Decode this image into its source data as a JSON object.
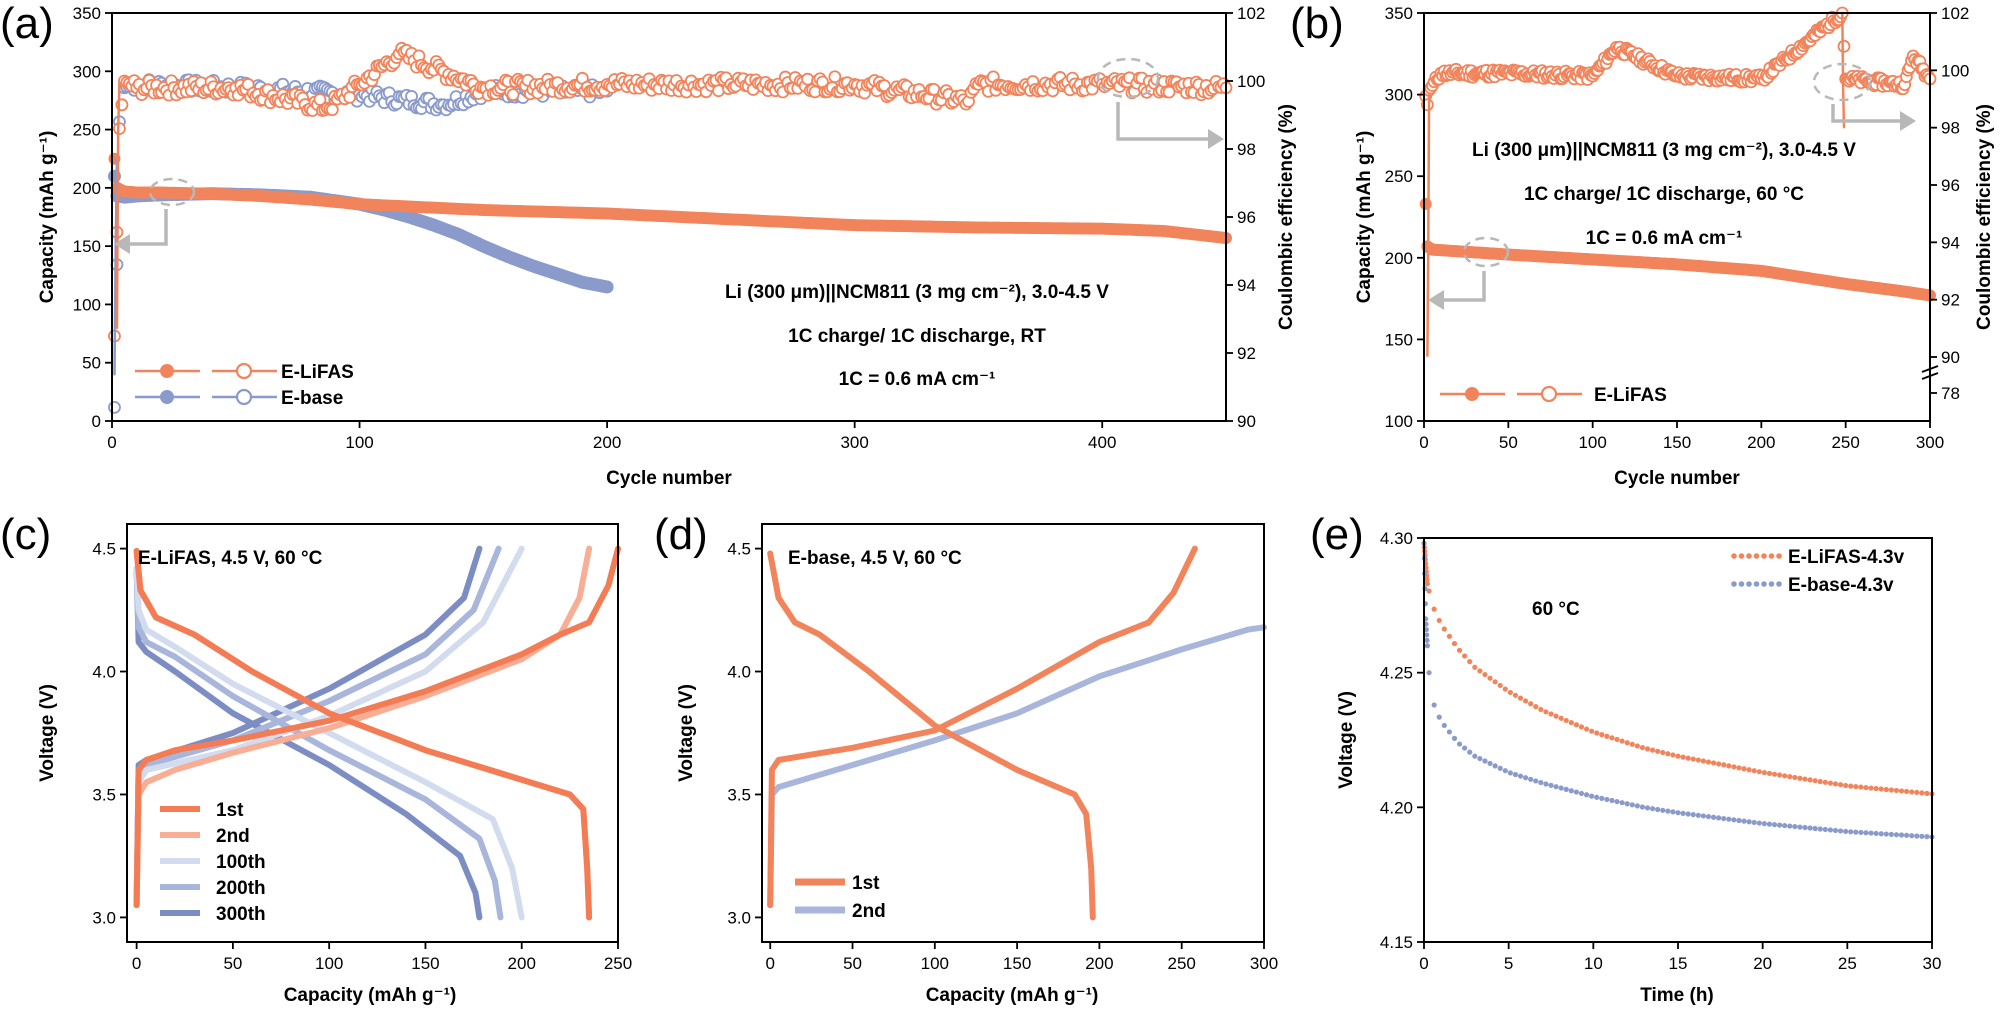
{
  "colors": {
    "lifas": "#F2845C",
    "base": "#8A9BCB",
    "cycle1": "#F47C55",
    "cycle2": "#F8AD95",
    "cycle100": "#D3DBEF",
    "cycle200": "#A9B6DB",
    "cycle300": "#7C8DC4",
    "arrow": "#B8B8B8"
  },
  "chart_data": [
    {
      "panel": "(a)",
      "type": "scatter",
      "xlabel": "Cycle number",
      "ylabel": "Capacity (mAh g⁻¹)",
      "y2label": "Coulombic efficiency (%)",
      "xlim": [
        0,
        450
      ],
      "ylim": [
        0,
        350
      ],
      "y2lim": [
        90,
        102
      ],
      "xticks": [
        0,
        100,
        200,
        300,
        400
      ],
      "yticks": [
        0,
        50,
        100,
        150,
        200,
        250,
        300,
        350
      ],
      "y2ticks": [
        90,
        92,
        94,
        96,
        98,
        100,
        102
      ],
      "annotations": [
        "Li (300 μm)||NCM811 (3 mg cm⁻²), 3.0-4.5 V",
        "1C charge/ 1C discharge, RT",
        "1C = 0.6 mA cm⁻¹"
      ],
      "legend": [
        "E-LiFAS",
        "E-base"
      ],
      "legend_position": "bottom-left",
      "series": [
        {
          "name": "E-LiFAS",
          "axis": "capacity",
          "x": [
            1,
            2,
            5,
            10,
            20,
            40,
            60,
            80,
            100,
            150,
            200,
            250,
            300,
            350,
            400,
            425,
            450
          ],
          "y": [
            225,
            200,
            197,
            196,
            196,
            195,
            193,
            190,
            186,
            181,
            178,
            173,
            168,
            166,
            165,
            163,
            157
          ]
        },
        {
          "name": "E-base",
          "axis": "capacity",
          "x": [
            1,
            2,
            5,
            10,
            20,
            40,
            60,
            70,
            80,
            100,
            110,
            120,
            130,
            140,
            150,
            160,
            170,
            180,
            190,
            200
          ],
          "y": [
            210,
            193,
            192,
            193,
            194,
            195,
            194,
            193,
            192,
            186,
            181,
            175,
            168,
            160,
            150,
            141,
            133,
            126,
            119,
            115
          ]
        },
        {
          "name": "E-LiFAS",
          "axis": "coulombic_efficiency",
          "x": [
            1,
            3,
            5,
            10,
            50,
            87,
            100,
            116,
            150,
            200,
            250,
            300,
            346,
            350,
            400,
            450
          ],
          "y": [
            92.5,
            98.6,
            100.0,
            99.8,
            99.8,
            99.2,
            99.9,
            100.8,
            99.8,
            99.9,
            99.9,
            99.9,
            99.4,
            99.9,
            99.9,
            99.8
          ]
        },
        {
          "name": "E-base",
          "axis": "coulombic_efficiency",
          "x": [
            1,
            3,
            5,
            10,
            50,
            100,
            134,
            150,
            200
          ],
          "y": [
            90.4,
            98.8,
            99.8,
            99.9,
            99.8,
            99.6,
            99.3,
            99.7,
            99.7
          ]
        }
      ]
    },
    {
      "panel": "(b)",
      "type": "scatter",
      "xlabel": "Cycle number",
      "ylabel": "Capacity (mAh g⁻¹)",
      "y2label": "Coulombic efficiency (%)",
      "xlim": [
        0,
        300
      ],
      "ylim": [
        100,
        350
      ],
      "xticks": [
        0,
        50,
        100,
        150,
        200,
        250,
        300
      ],
      "yticks": [
        100,
        150,
        200,
        250,
        300,
        350
      ],
      "y2ticks": [
        78,
        90,
        92,
        94,
        96,
        98,
        100,
        102
      ],
      "y2_break": [
        78,
        90
      ],
      "annotations": [
        "Li (300 μm)||NCM811 (3 mg cm⁻²), 3.0-4.5 V",
        "1C charge/ 1C discharge, 60 °C",
        "1C = 0.6 mA cm⁻¹"
      ],
      "legend": [
        "E-LiFAS"
      ],
      "legend_position": "bottom-left",
      "series": [
        {
          "name": "E-LiFAS",
          "axis": "capacity",
          "x": [
            1,
            2,
            5,
            20,
            50,
            100,
            150,
            200,
            250,
            280,
            300
          ],
          "y": [
            233,
            207,
            205,
            204,
            202,
            199,
            196,
            192,
            184,
            180,
            177
          ]
        },
        {
          "name": "E-LiFAS",
          "axis": "coulombic_efficiency",
          "x": [
            1,
            2,
            3,
            10,
            50,
            100,
            114,
            150,
            200,
            248,
            250,
            285,
            290,
            300
          ],
          "y": [
            99.1,
            98.8,
            99.3,
            99.9,
            99.9,
            99.8,
            100.8,
            99.8,
            99.7,
            102,
            99.7,
            99.5,
            100.5,
            99.7
          ]
        }
      ]
    },
    {
      "panel": "(c)",
      "type": "line",
      "title": "E-LiFAS, 4.5 V, 60 °C",
      "xlabel": "Capacity (mAh g⁻¹)",
      "ylabel": "Voltage (V)",
      "xlim": [
        -5,
        250
      ],
      "ylim": [
        2.9,
        4.6
      ],
      "xticks": [
        0,
        50,
        100,
        150,
        200,
        250
      ],
      "yticks": [
        3.0,
        3.5,
        4.0,
        4.5
      ],
      "legend_position": "bottom-left",
      "series": [
        {
          "name": "1st",
          "charge": {
            "x": [
              0,
              1,
              5,
              20,
              50,
              100,
              150,
              200,
              220,
              235,
              245,
              250
            ],
            "y": [
              3.05,
              3.6,
              3.64,
              3.68,
              3.72,
              3.8,
              3.92,
              4.07,
              4.15,
              4.2,
              4.35,
              4.5
            ]
          },
          "discharge": {
            "x": [
              0,
              2,
              10,
              30,
              60,
              100,
              150,
              200,
              225,
              232,
              234,
              235
            ],
            "y": [
              4.49,
              4.33,
              4.22,
              4.15,
              4.0,
              3.83,
              3.68,
              3.56,
              3.5,
              3.44,
              3.2,
              3.0
            ]
          }
        },
        {
          "name": "2nd",
          "charge": {
            "x": [
              0,
              1,
              5,
              20,
              50,
              100,
              150,
              200,
              220,
              230,
              235
            ],
            "y": [
              3.05,
              3.5,
              3.55,
              3.6,
              3.67,
              3.77,
              3.9,
              4.05,
              4.15,
              4.3,
              4.5
            ]
          },
          "discharge": {
            "x": [
              0,
              2,
              10,
              30,
              60,
              100,
              150,
              200,
              225,
              232,
              234,
              235
            ],
            "y": [
              4.49,
              4.33,
              4.22,
              4.15,
              4.0,
              3.83,
              3.68,
              3.56,
              3.5,
              3.44,
              3.2,
              3.0
            ]
          }
        },
        {
          "name": "100th",
          "charge": {
            "x": [
              0,
              1,
              5,
              50,
              100,
              150,
              180,
              200
            ],
            "y": [
              3.05,
              3.55,
              3.6,
              3.68,
              3.82,
              4.0,
              4.2,
              4.5
            ]
          },
          "discharge": {
            "x": [
              0,
              1,
              5,
              20,
              50,
              100,
              150,
              185,
              195,
              200
            ],
            "y": [
              4.42,
              4.25,
              4.17,
              4.1,
              3.95,
              3.75,
              3.55,
              3.4,
              3.2,
              3.0
            ]
          }
        },
        {
          "name": "200th",
          "charge": {
            "x": [
              0,
              1,
              5,
              50,
              100,
              150,
              175,
              188
            ],
            "y": [
              3.05,
              3.58,
              3.62,
              3.72,
              3.88,
              4.07,
              4.25,
              4.5
            ]
          },
          "discharge": {
            "x": [
              0,
              1,
              5,
              20,
              50,
              100,
              150,
              178,
              186,
              189
            ],
            "y": [
              4.42,
              4.18,
              4.12,
              4.06,
              3.9,
              3.68,
              3.48,
              3.32,
              3.15,
              3.0
            ]
          }
        },
        {
          "name": "300th",
          "charge": {
            "x": [
              0,
              1,
              5,
              50,
              100,
              150,
              170,
              178
            ],
            "y": [
              3.05,
              3.62,
              3.64,
              3.75,
              3.93,
              4.15,
              4.3,
              4.5
            ]
          },
          "discharge": {
            "x": [
              0,
              1,
              5,
              20,
              50,
              100,
              140,
              168,
              176,
              178
            ],
            "y": [
              4.42,
              4.12,
              4.08,
              4.0,
              3.83,
              3.62,
              3.42,
              3.25,
              3.1,
              3.0
            ]
          }
        }
      ]
    },
    {
      "panel": "(d)",
      "type": "line",
      "title": "E-base, 4.5 V, 60 °C",
      "xlabel": "Capacity (mAh g⁻¹)",
      "ylabel": "Voltage (V)",
      "xlim": [
        -5,
        300
      ],
      "ylim": [
        2.9,
        4.6
      ],
      "xticks": [
        0,
        50,
        100,
        150,
        200,
        250,
        300
      ],
      "yticks": [
        3.0,
        3.5,
        4.0,
        4.5
      ],
      "legend_position": "bottom-left",
      "series": [
        {
          "name": "1st",
          "charge": {
            "x": [
              0,
              1,
              5,
              50,
              100,
              150,
              200,
              230,
              245,
              258
            ],
            "y": [
              3.05,
              3.6,
              3.64,
              3.69,
              3.76,
              3.93,
              4.12,
              4.2,
              4.32,
              4.5
            ]
          },
          "discharge": {
            "x": [
              0,
              5,
              15,
              30,
              60,
              100,
              150,
              185,
              192,
              195,
              196
            ],
            "y": [
              4.48,
              4.3,
              4.2,
              4.15,
              4.0,
              3.78,
              3.6,
              3.5,
              3.42,
              3.2,
              3.0
            ]
          }
        },
        {
          "name": "2nd",
          "charge": {
            "x": [
              0,
              1,
              5,
              50,
              100,
              150,
              200,
              250,
              275,
              290,
              300
            ],
            "y": [
              3.05,
              3.5,
              3.53,
              3.62,
              3.72,
              3.83,
              3.98,
              4.09,
              4.14,
              4.17,
              4.18
            ]
          }
        }
      ]
    },
    {
      "panel": "(e)",
      "type": "scatter",
      "title": "60 °C",
      "xlabel": "Time (h)",
      "ylabel": "Voltage (V)",
      "xlim": [
        0,
        30
      ],
      "ylim": [
        4.15,
        4.3
      ],
      "xticks": [
        0,
        5,
        10,
        15,
        20,
        25,
        30
      ],
      "yticks": [
        4.15,
        4.2,
        4.25,
        4.3
      ],
      "legend_position": "top-right",
      "series": [
        {
          "name": "E-LiFAS-4.3v",
          "x": [
            0,
            0.2,
            0.5,
            1,
            2,
            3,
            5,
            7,
            10,
            13,
            15,
            20,
            25,
            30
          ],
          "y": [
            4.298,
            4.283,
            4.275,
            4.268,
            4.259,
            4.252,
            4.243,
            4.236,
            4.228,
            4.222,
            4.219,
            4.213,
            4.208,
            4.205
          ]
        },
        {
          "name": "E-base-4.3v",
          "x": [
            0,
            0.1,
            0.3,
            0.6,
            1,
            2,
            3,
            5,
            7,
            10,
            13,
            15,
            20,
            25,
            30
          ],
          "y": [
            4.298,
            4.27,
            4.25,
            4.238,
            4.232,
            4.224,
            4.219,
            4.213,
            4.209,
            4.204,
            4.2,
            4.198,
            4.194,
            4.191,
            4.189
          ]
        }
      ]
    }
  ]
}
